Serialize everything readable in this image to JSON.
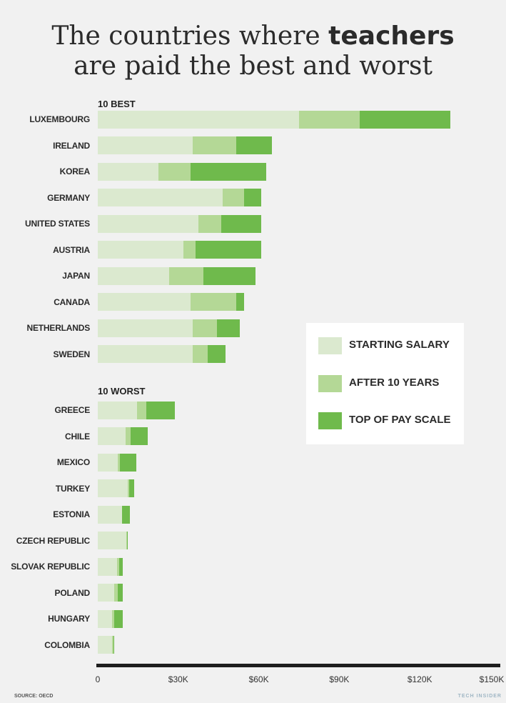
{
  "title": {
    "normal": "The countries where ",
    "bold": "teachers",
    "line2": "are paid the best and worst"
  },
  "source": "SOURCE: OECD",
  "brand": "TECH INSIDER",
  "colors": {
    "starting": "#dbe9cf",
    "after10": "#b4d896",
    "top": "#6fba4c",
    "axis": "#1e1e1e"
  },
  "chart_data": {
    "type": "bar",
    "orientation": "horizontal",
    "stacked": "overlapping",
    "xlim": [
      0,
      150000
    ],
    "xticks": [
      "0",
      "$30K",
      "$60K",
      "$90K",
      "$120K",
      "$150K"
    ],
    "series": [
      {
        "name": "STARTING SALARY",
        "key": "starting"
      },
      {
        "name": "AFTER 10 YEARS",
        "key": "after10"
      },
      {
        "name": "TOP OF PAY SCALE",
        "key": "top"
      }
    ],
    "groups": [
      {
        "label": "10 BEST",
        "rows": [
          {
            "country": "LUXEMBOURG",
            "starting": 74900,
            "after10": 97600,
            "top": 131300
          },
          {
            "country": "IRELAND",
            "starting": 35500,
            "after10": 51500,
            "top": 64900
          },
          {
            "country": "KOREA",
            "starting": 22500,
            "after10": 34700,
            "top": 62700
          },
          {
            "country": "GERMANY",
            "starting": 46500,
            "after10": 54600,
            "top": 60800
          },
          {
            "country": "UNITED STATES",
            "starting": 37400,
            "after10": 46000,
            "top": 60900
          },
          {
            "country": "AUSTRIA",
            "starting": 31800,
            "after10": 36400,
            "top": 60900
          },
          {
            "country": "JAPAN",
            "starting": 26500,
            "after10": 39300,
            "top": 58900
          },
          {
            "country": "CANADA",
            "starting": 34600,
            "after10": 51500,
            "top": 54600
          },
          {
            "country": "NETHERLANDS",
            "starting": 35500,
            "after10": 44500,
            "top": 53000
          },
          {
            "country": "SWEDEN",
            "starting": 35500,
            "after10": 41000,
            "top": 47700
          }
        ]
      },
      {
        "label": "10 WORST",
        "rows": [
          {
            "country": "GREECE",
            "starting": 14700,
            "after10": 18200,
            "top": 28600
          },
          {
            "country": "CHILE",
            "starting": 10400,
            "after10": 12200,
            "top": 18500
          },
          {
            "country": "MEXICO",
            "starting": 7500,
            "after10": 8200,
            "top": 14300
          },
          {
            "country": "TURKEY",
            "starting": 11200,
            "after10": 11800,
            "top": 13500
          },
          {
            "country": "ESTONIA",
            "starting": 9100,
            "after10": 9100,
            "top": 12100
          },
          {
            "country": "CZECH REPUBLIC",
            "starting": 10600,
            "after10": 11000,
            "top": 11200
          },
          {
            "country": "SLOVAK REPUBLIC",
            "starting": 7300,
            "after10": 7900,
            "top": 9200
          },
          {
            "country": "POLAND",
            "starting": 6200,
            "after10": 7500,
            "top": 9200
          },
          {
            "country": "HUNGARY",
            "starting": 5300,
            "after10": 6200,
            "top": 9200
          },
          {
            "country": "COLOMBIA",
            "starting": 5300,
            "after10": 5800,
            "top": 6000
          }
        ]
      }
    ]
  }
}
